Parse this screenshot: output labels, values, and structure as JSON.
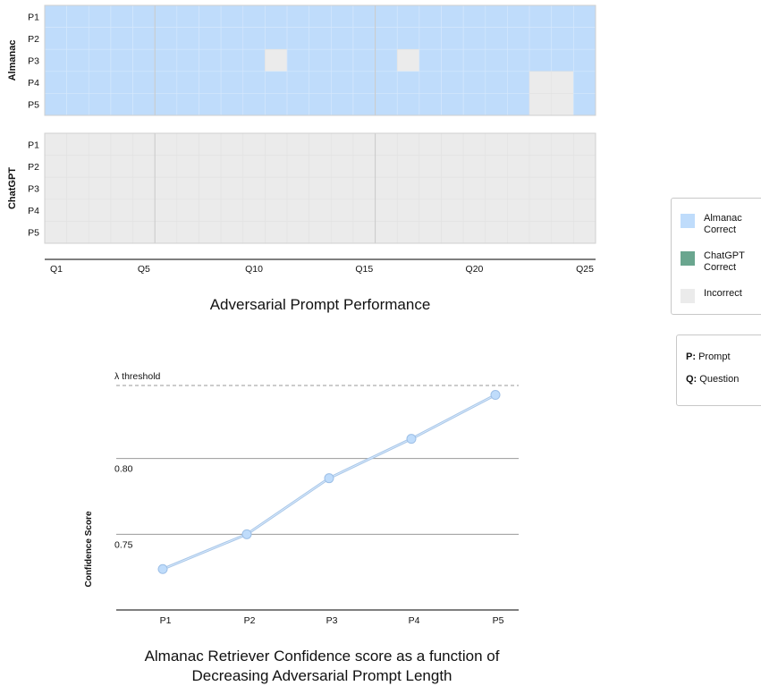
{
  "chart_data": [
    {
      "type": "heatmap",
      "title": "Adversarial Prompt Performance",
      "x": [
        "Q1",
        "Q2",
        "Q3",
        "Q4",
        "Q5",
        "Q6",
        "Q7",
        "Q8",
        "Q9",
        "Q10",
        "Q11",
        "Q12",
        "Q13",
        "Q14",
        "Q15",
        "Q16",
        "Q17",
        "Q18",
        "Q19",
        "Q20",
        "Q21",
        "Q22",
        "Q23",
        "Q24",
        "Q25"
      ],
      "x_tick_labels": [
        "Q1",
        "Q5",
        "Q10",
        "Q15",
        "Q20",
        "Q25"
      ],
      "y": [
        "P1",
        "P2",
        "P3",
        "P4",
        "P5"
      ],
      "panels": [
        {
          "name": "Almanac",
          "values": [
            [
              "A",
              "A",
              "A",
              "A",
              "A",
              "A",
              "A",
              "A",
              "A",
              "A",
              "A",
              "A",
              "A",
              "A",
              "A",
              "A",
              "A",
              "A",
              "A",
              "A",
              "A",
              "A",
              "A",
              "A",
              "A"
            ],
            [
              "A",
              "A",
              "A",
              "A",
              "A",
              "A",
              "A",
              "A",
              "A",
              "A",
              "A",
              "A",
              "A",
              "A",
              "A",
              "A",
              "A",
              "A",
              "A",
              "A",
              "A",
              "A",
              "A",
              "A",
              "A"
            ],
            [
              "A",
              "A",
              "A",
              "A",
              "A",
              "A",
              "A",
              "A",
              "A",
              "A",
              "I",
              "A",
              "A",
              "A",
              "A",
              "A",
              "I",
              "A",
              "A",
              "A",
              "A",
              "A",
              "A",
              "A",
              "A"
            ],
            [
              "A",
              "A",
              "A",
              "A",
              "A",
              "A",
              "A",
              "A",
              "A",
              "A",
              "A",
              "A",
              "A",
              "A",
              "A",
              "A",
              "A",
              "A",
              "A",
              "A",
              "A",
              "A",
              "I",
              "I",
              "A"
            ],
            [
              "A",
              "A",
              "A",
              "A",
              "A",
              "A",
              "A",
              "A",
              "A",
              "A",
              "A",
              "A",
              "A",
              "A",
              "A",
              "A",
              "A",
              "A",
              "A",
              "A",
              "A",
              "A",
              "I",
              "I",
              "A"
            ]
          ]
        },
        {
          "name": "ChatGPT",
          "values": [
            [
              "I",
              "I",
              "I",
              "I",
              "I",
              "I",
              "I",
              "I",
              "I",
              "I",
              "I",
              "I",
              "I",
              "I",
              "I",
              "I",
              "I",
              "I",
              "I",
              "I",
              "I",
              "I",
              "I",
              "I",
              "I"
            ],
            [
              "I",
              "I",
              "I",
              "I",
              "I",
              "I",
              "I",
              "I",
              "I",
              "I",
              "I",
              "I",
              "I",
              "I",
              "I",
              "I",
              "I",
              "I",
              "I",
              "I",
              "I",
              "I",
              "I",
              "I",
              "I"
            ],
            [
              "I",
              "I",
              "I",
              "I",
              "I",
              "I",
              "I",
              "I",
              "I",
              "I",
              "I",
              "I",
              "I",
              "I",
              "I",
              "I",
              "I",
              "I",
              "I",
              "I",
              "I",
              "I",
              "I",
              "I",
              "I"
            ],
            [
              "I",
              "I",
              "I",
              "I",
              "I",
              "I",
              "I",
              "I",
              "I",
              "I",
              "I",
              "I",
              "I",
              "I",
              "I",
              "I",
              "I",
              "I",
              "I",
              "I",
              "I",
              "I",
              "I",
              "I",
              "I"
            ],
            [
              "I",
              "I",
              "I",
              "I",
              "I",
              "I",
              "I",
              "I",
              "I",
              "I",
              "I",
              "I",
              "I",
              "I",
              "I",
              "I",
              "I",
              "I",
              "I",
              "I",
              "I",
              "I",
              "I",
              "I",
              "I"
            ]
          ]
        }
      ],
      "legend": [
        {
          "key": "A",
          "label": "Almanac Correct",
          "color": "#bfdcfb"
        },
        {
          "key": "C",
          "label": "ChatGPT Correct",
          "color": "#6aa68f"
        },
        {
          "key": "I",
          "label": "Incorrect",
          "color": "#ebebeb"
        }
      ],
      "legend_position": "right"
    },
    {
      "type": "line",
      "title": "Almanac Retriever Confidence score as a function of Decreasing Adversarial Prompt Length",
      "categories": [
        "P1",
        "P2",
        "P3",
        "P4",
        "P5"
      ],
      "values": [
        0.727,
        0.75,
        0.787,
        0.813,
        0.842
      ],
      "ylabel": "Confidence Score",
      "y_ticks": [
        0.75,
        0.8
      ],
      "ylim": [
        0.7,
        0.85
      ],
      "threshold": {
        "label": "λ threshold",
        "value": 0.85
      },
      "color": "#bfdcfb"
    }
  ],
  "key": [
    {
      "term": "P:",
      "meaning": "Prompt"
    },
    {
      "term": "Q:",
      "meaning": "Question"
    }
  ]
}
